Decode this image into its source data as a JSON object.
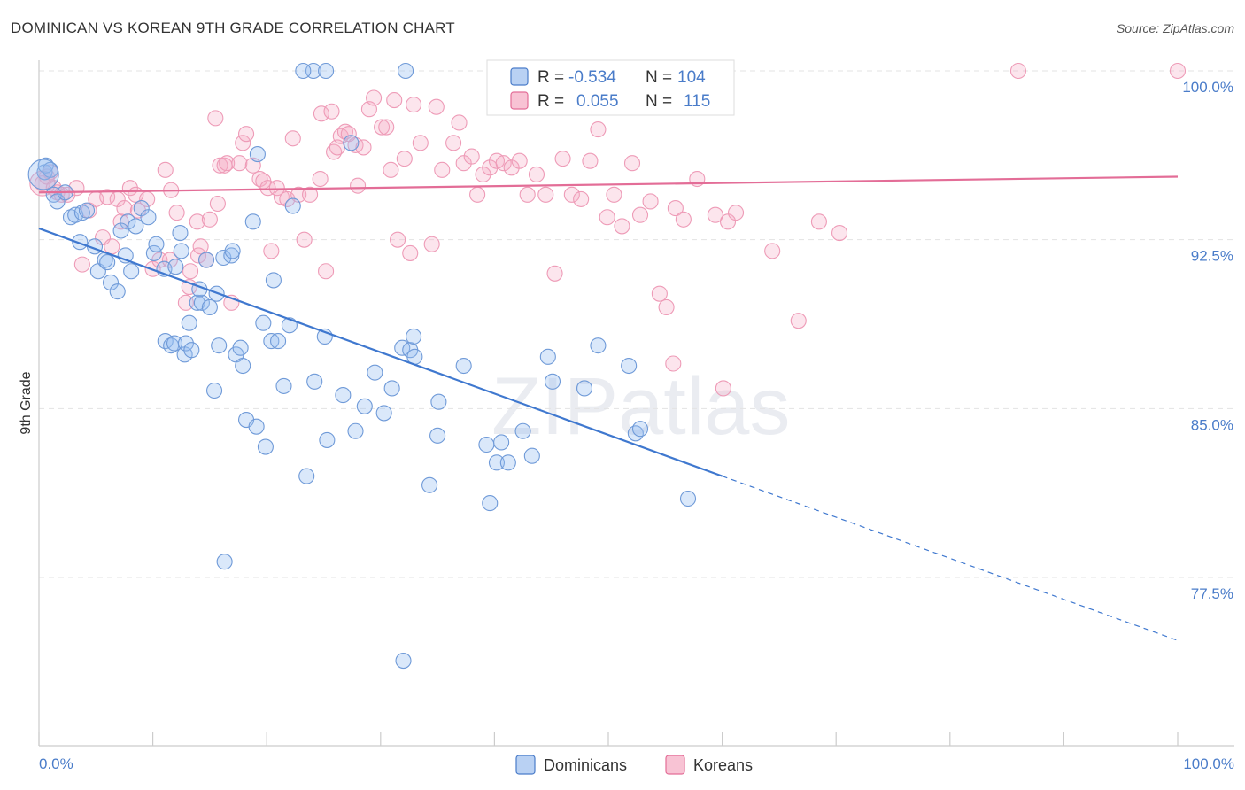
{
  "title": "DOMINICAN VS KOREAN 9TH GRADE CORRELATION CHART",
  "source": "Source: ZipAtlas.com",
  "watermark": "ZIPatlas",
  "legend_top": {
    "rows": [
      {
        "r_label": "R =",
        "r_value": "-0.534",
        "n_label": "N =",
        "n_value": "104"
      },
      {
        "r_label": "R =",
        "r_value": "0.055",
        "n_label": "N =",
        "n_value": "115"
      }
    ]
  },
  "legend_bottom": [
    "Dominicans",
    "Koreans"
  ],
  "chart_data": {
    "type": "scatter",
    "title": "DOMINICAN VS KOREAN 9TH GRADE CORRELATION CHART",
    "xlabel": "",
    "ylabel": "9th Grade",
    "xlim": [
      0,
      100
    ],
    "ylim": [
      70.5,
      101
    ],
    "x_tick_labels": [
      "0.0%",
      "100.0%"
    ],
    "y_ticks": [
      100,
      92.5,
      85,
      77.5
    ],
    "y_tick_labels": [
      "100.0%",
      "92.5%",
      "85.0%",
      "77.5%"
    ],
    "colors": {
      "Dominicans": "#4a7cc9",
      "Koreans": "#e36d97"
    },
    "series": [
      {
        "name": "Dominicans",
        "r": -0.534,
        "n": 104,
        "trend": {
          "x0": 0,
          "y0": 93,
          "x1": 60,
          "y1": 82,
          "dashed_to_x": 100,
          "dashed_to_y": 74.7
        },
        "points": [
          [
            0.5,
            95.5
          ],
          [
            0.6,
            95.8
          ],
          [
            1.0,
            95.6
          ],
          [
            1.3,
            94.5
          ],
          [
            1.6,
            94.2
          ],
          [
            2.3,
            94.6
          ],
          [
            2.8,
            93.5
          ],
          [
            3.2,
            93.6
          ],
          [
            3.8,
            93.7
          ],
          [
            4.2,
            93.8
          ],
          [
            3.6,
            92.4
          ],
          [
            4.9,
            92.2
          ],
          [
            5.2,
            91.1
          ],
          [
            5.8,
            91.6
          ],
          [
            6.0,
            91.5
          ],
          [
            6.3,
            90.6
          ],
          [
            6.9,
            90.2
          ],
          [
            7.8,
            93.3
          ],
          [
            7.2,
            92.9
          ],
          [
            7.6,
            91.8
          ],
          [
            8.1,
            91.1
          ],
          [
            8.5,
            93.1
          ],
          [
            9.0,
            93.9
          ],
          [
            9.6,
            93.5
          ],
          [
            10.1,
            91.9
          ],
          [
            10.3,
            92.3
          ],
          [
            11.0,
            91.2
          ],
          [
            11.1,
            88.0
          ],
          [
            11.6,
            87.8
          ],
          [
            12.0,
            91.3
          ],
          [
            12.4,
            92.8
          ],
          [
            12.5,
            92.0
          ],
          [
            11.9,
            87.9
          ],
          [
            12.8,
            87.4
          ],
          [
            12.9,
            87.9
          ],
          [
            13.2,
            88.8
          ],
          [
            13.4,
            87.6
          ],
          [
            13.9,
            89.7
          ],
          [
            14.3,
            89.7
          ],
          [
            14.1,
            90.3
          ],
          [
            14.7,
            91.6
          ],
          [
            15.0,
            89.5
          ],
          [
            15.4,
            85.8
          ],
          [
            15.6,
            90.1
          ],
          [
            15.8,
            87.8
          ],
          [
            16.2,
            91.7
          ],
          [
            16.9,
            91.8
          ],
          [
            17.0,
            92.0
          ],
          [
            17.3,
            87.4
          ],
          [
            17.7,
            87.7
          ],
          [
            17.9,
            86.9
          ],
          [
            18.2,
            84.5
          ],
          [
            18.8,
            93.3
          ],
          [
            19.1,
            84.2
          ],
          [
            19.2,
            96.3
          ],
          [
            19.7,
            88.8
          ],
          [
            19.9,
            83.3
          ],
          [
            20.4,
            88.0
          ],
          [
            20.6,
            90.7
          ],
          [
            21.0,
            88.0
          ],
          [
            21.5,
            86.0
          ],
          [
            22.0,
            88.7
          ],
          [
            22.3,
            94.0
          ],
          [
            23.5,
            82.0
          ],
          [
            24.2,
            86.2
          ],
          [
            25.1,
            88.2
          ],
          [
            25.3,
            83.6
          ],
          [
            26.7,
            85.6
          ],
          [
            27.4,
            96.8
          ],
          [
            27.8,
            84.0
          ],
          [
            28.6,
            85.1
          ],
          [
            29.5,
            86.6
          ],
          [
            30.3,
            84.8
          ],
          [
            31.0,
            85.9
          ],
          [
            31.9,
            87.7
          ],
          [
            32.6,
            87.6
          ],
          [
            32.9,
            88.2
          ],
          [
            33.0,
            87.3
          ],
          [
            34.3,
            81.6
          ],
          [
            35.0,
            83.8
          ],
          [
            35.1,
            85.3
          ],
          [
            37.3,
            86.9
          ],
          [
            39.3,
            83.4
          ],
          [
            39.6,
            80.8
          ],
          [
            40.2,
            82.6
          ],
          [
            40.6,
            83.5
          ],
          [
            41.2,
            82.6
          ],
          [
            42.5,
            84.0
          ],
          [
            43.3,
            82.9
          ],
          [
            44.7,
            87.3
          ],
          [
            45.1,
            86.2
          ],
          [
            47.9,
            85.9
          ],
          [
            49.1,
            87.8
          ],
          [
            51.8,
            86.9
          ],
          [
            52.4,
            83.9
          ],
          [
            52.8,
            84.1
          ],
          [
            57.0,
            81.0
          ],
          [
            16.3,
            78.2
          ],
          [
            32.0,
            73.8
          ],
          [
            24.1,
            100.0
          ],
          [
            23.2,
            100.0
          ],
          [
            25.2,
            100.0
          ],
          [
            32.2,
            100.0
          ]
        ]
      },
      {
        "name": "Koreans",
        "r": 0.055,
        "n": 115,
        "trend": {
          "x0": 0,
          "y0": 94.6,
          "x1": 100,
          "y1": 95.3
        },
        "points": [
          [
            0.3,
            95.0
          ],
          [
            0.7,
            95.3
          ],
          [
            1.0,
            95.5
          ],
          [
            1.3,
            94.8
          ],
          [
            1.6,
            94.6
          ],
          [
            2.0,
            94.5
          ],
          [
            2.5,
            94.5
          ],
          [
            3.3,
            94.8
          ],
          [
            3.8,
            91.4
          ],
          [
            4.4,
            93.8
          ],
          [
            5.0,
            94.3
          ],
          [
            5.6,
            92.6
          ],
          [
            6.0,
            94.4
          ],
          [
            6.4,
            92.2
          ],
          [
            6.9,
            94.3
          ],
          [
            7.2,
            93.3
          ],
          [
            7.5,
            93.9
          ],
          [
            8.0,
            94.8
          ],
          [
            8.5,
            94.5
          ],
          [
            8.7,
            93.8
          ],
          [
            9.5,
            94.3
          ],
          [
            10.0,
            91.2
          ],
          [
            10.6,
            91.6
          ],
          [
            11.1,
            95.6
          ],
          [
            11.5,
            91.6
          ],
          [
            11.6,
            94.7
          ],
          [
            12.1,
            93.7
          ],
          [
            12.9,
            89.7
          ],
          [
            13.2,
            90.4
          ],
          [
            13.3,
            91.1
          ],
          [
            13.9,
            93.3
          ],
          [
            14.0,
            91.8
          ],
          [
            14.7,
            91.6
          ],
          [
            14.2,
            92.2
          ],
          [
            15.0,
            93.4
          ],
          [
            15.5,
            97.9
          ],
          [
            15.7,
            94.1
          ],
          [
            15.9,
            95.8
          ],
          [
            16.3,
            95.8
          ],
          [
            16.5,
            95.9
          ],
          [
            16.9,
            89.7
          ],
          [
            17.6,
            95.9
          ],
          [
            17.9,
            96.8
          ],
          [
            18.2,
            97.2
          ],
          [
            18.8,
            95.8
          ],
          [
            19.4,
            95.2
          ],
          [
            19.7,
            95.1
          ],
          [
            20.1,
            94.8
          ],
          [
            20.4,
            92.0
          ],
          [
            20.9,
            94.8
          ],
          [
            21.3,
            94.4
          ],
          [
            21.8,
            94.3
          ],
          [
            22.3,
            97.0
          ],
          [
            22.8,
            94.5
          ],
          [
            23.3,
            92.5
          ],
          [
            23.8,
            94.5
          ],
          [
            24.7,
            95.2
          ],
          [
            24.8,
            98.1
          ],
          [
            25.2,
            91.1
          ],
          [
            25.7,
            98.2
          ],
          [
            25.9,
            96.4
          ],
          [
            26.2,
            96.6
          ],
          [
            26.5,
            97.1
          ],
          [
            26.9,
            97.3
          ],
          [
            27.2,
            97.2
          ],
          [
            27.8,
            96.7
          ],
          [
            28.0,
            94.9
          ],
          [
            28.5,
            96.6
          ],
          [
            29.0,
            98.3
          ],
          [
            29.4,
            98.8
          ],
          [
            30.1,
            97.5
          ],
          [
            30.5,
            97.5
          ],
          [
            30.9,
            95.6
          ],
          [
            31.2,
            98.7
          ],
          [
            31.5,
            92.5
          ],
          [
            32.1,
            96.1
          ],
          [
            32.6,
            91.9
          ],
          [
            32.9,
            98.5
          ],
          [
            33.5,
            96.8
          ],
          [
            34.5,
            92.3
          ],
          [
            34.9,
            98.4
          ],
          [
            35.4,
            95.6
          ],
          [
            36.4,
            96.8
          ],
          [
            36.9,
            97.7
          ],
          [
            37.3,
            95.9
          ],
          [
            38.0,
            96.2
          ],
          [
            38.5,
            94.5
          ],
          [
            39.0,
            95.4
          ],
          [
            39.6,
            95.7
          ],
          [
            40.2,
            96.0
          ],
          [
            40.8,
            95.9
          ],
          [
            41.5,
            95.7
          ],
          [
            42.2,
            96.0
          ],
          [
            42.9,
            94.5
          ],
          [
            43.7,
            95.4
          ],
          [
            44.5,
            94.5
          ],
          [
            45.3,
            91.0
          ],
          [
            46.0,
            96.1
          ],
          [
            46.8,
            94.5
          ],
          [
            47.6,
            94.3
          ],
          [
            48.4,
            96.0
          ],
          [
            49.1,
            97.4
          ],
          [
            49.9,
            93.5
          ],
          [
            50.5,
            94.5
          ],
          [
            51.2,
            93.1
          ],
          [
            52.1,
            95.9
          ],
          [
            52.8,
            93.6
          ],
          [
            53.7,
            94.2
          ],
          [
            54.5,
            90.1
          ],
          [
            55.1,
            89.5
          ],
          [
            55.9,
            93.9
          ],
          [
            56.6,
            93.4
          ],
          [
            57.8,
            95.2
          ],
          [
            59.4,
            93.6
          ],
          [
            60.5,
            93.3
          ],
          [
            61.2,
            93.7
          ],
          [
            64.4,
            92.0
          ],
          [
            66.7,
            88.9
          ],
          [
            68.5,
            93.3
          ],
          [
            70.3,
            92.8
          ],
          [
            55.7,
            87.0
          ],
          [
            60.1,
            85.9
          ],
          [
            50.0,
            100.0
          ],
          [
            86.0,
            100.0
          ],
          [
            100.0,
            100.0
          ]
        ]
      }
    ]
  }
}
